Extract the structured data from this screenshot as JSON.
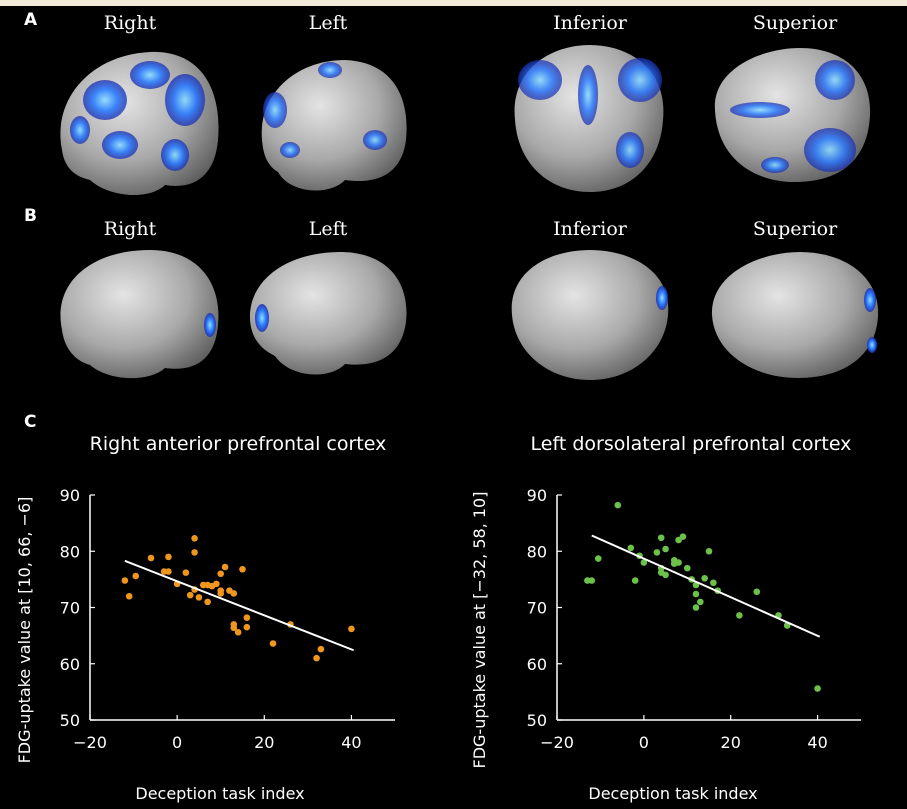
{
  "panels": {
    "A": {
      "letter": "A",
      "views": [
        "Right",
        "Left",
        "Inferior",
        "Superior"
      ]
    },
    "B": {
      "letter": "B",
      "views": [
        "Right",
        "Left",
        "Inferior",
        "Superior"
      ]
    },
    "C": {
      "letter": "C"
    }
  },
  "colors": {
    "orange_points": "#f0961e",
    "green_points": "#6cc14a",
    "fit_line": "#ffffff",
    "activation": "#2f6cff",
    "brain": "#b9b9b9"
  },
  "chart_data": [
    {
      "type": "scatter",
      "title": "Right anterior prefrontal cortex",
      "xlabel": "Deception task index",
      "ylabel": "FDG-uptake value at [10, 66, −6]",
      "xlim": [
        -20,
        50
      ],
      "ylim": [
        50,
        90
      ],
      "xticks": [
        "−20",
        "0",
        "20",
        "40"
      ],
      "yticks": [
        "50",
        "60",
        "70",
        "80",
        "90"
      ],
      "points": [
        [
          -12,
          74.8
        ],
        [
          -11,
          72
        ],
        [
          -9.5,
          75.6
        ],
        [
          -6,
          78.8
        ],
        [
          -3,
          76.4
        ],
        [
          -2,
          79
        ],
        [
          -2,
          76.4
        ],
        [
          0,
          74.2
        ],
        [
          2,
          76.2
        ],
        [
          3,
          72.2
        ],
        [
          4,
          73.2
        ],
        [
          4,
          79.8
        ],
        [
          4,
          82.3
        ],
        [
          5,
          71.8
        ],
        [
          6,
          74
        ],
        [
          7,
          74
        ],
        [
          7,
          71
        ],
        [
          8,
          73.8
        ],
        [
          9,
          74.2
        ],
        [
          10,
          72.5
        ],
        [
          10,
          73
        ],
        [
          10,
          76
        ],
        [
          11,
          77.2
        ],
        [
          12,
          73
        ],
        [
          13,
          72.5
        ],
        [
          13,
          67
        ],
        [
          13,
          66.4
        ],
        [
          14,
          65.6
        ],
        [
          15,
          76.8
        ],
        [
          16,
          68.2
        ],
        [
          16,
          66.5
        ],
        [
          22,
          63.6
        ],
        [
          26,
          67
        ],
        [
          32,
          61
        ],
        [
          33,
          62.6
        ],
        [
          40,
          66.2
        ]
      ],
      "fit": [
        [
          -12,
          78.3
        ],
        [
          40.5,
          62.4
        ]
      ]
    },
    {
      "type": "scatter",
      "title": "Left dorsolateral prefrontal cortex",
      "xlabel": "Deception task index",
      "ylabel": "FDG-uptake value at [−32, 58, 10]",
      "xlim": [
        -20,
        50
      ],
      "ylim": [
        50,
        90
      ],
      "xticks": [
        "−20",
        "0",
        "20",
        "40"
      ],
      "yticks": [
        "50",
        "60",
        "70",
        "80",
        "90"
      ],
      "points": [
        [
          -13,
          74.8
        ],
        [
          -12,
          74.8
        ],
        [
          -10.5,
          78.7
        ],
        [
          -6,
          88.2
        ],
        [
          -3,
          80.6
        ],
        [
          -2,
          74.8
        ],
        [
          -1,
          79.2
        ],
        [
          0,
          78
        ],
        [
          3,
          79.8
        ],
        [
          4,
          82.4
        ],
        [
          4,
          77
        ],
        [
          4,
          76.2
        ],
        [
          5,
          75.8
        ],
        [
          5,
          80.4
        ],
        [
          7,
          78.4
        ],
        [
          7,
          77.8
        ],
        [
          8,
          82
        ],
        [
          8,
          78
        ],
        [
          9,
          82.6
        ],
        [
          10,
          77
        ],
        [
          11,
          75
        ],
        [
          12,
          74
        ],
        [
          12,
          72.4
        ],
        [
          12,
          70
        ],
        [
          13,
          71
        ],
        [
          14,
          75.2
        ],
        [
          15,
          80
        ],
        [
          16,
          74.4
        ],
        [
          17,
          73
        ],
        [
          22,
          68.6
        ],
        [
          26,
          72.8
        ],
        [
          31,
          68.6
        ],
        [
          33,
          66.8
        ],
        [
          40,
          55.6
        ]
      ],
      "fit": [
        [
          -12,
          82.8
        ],
        [
          40.5,
          64.8
        ]
      ]
    }
  ]
}
